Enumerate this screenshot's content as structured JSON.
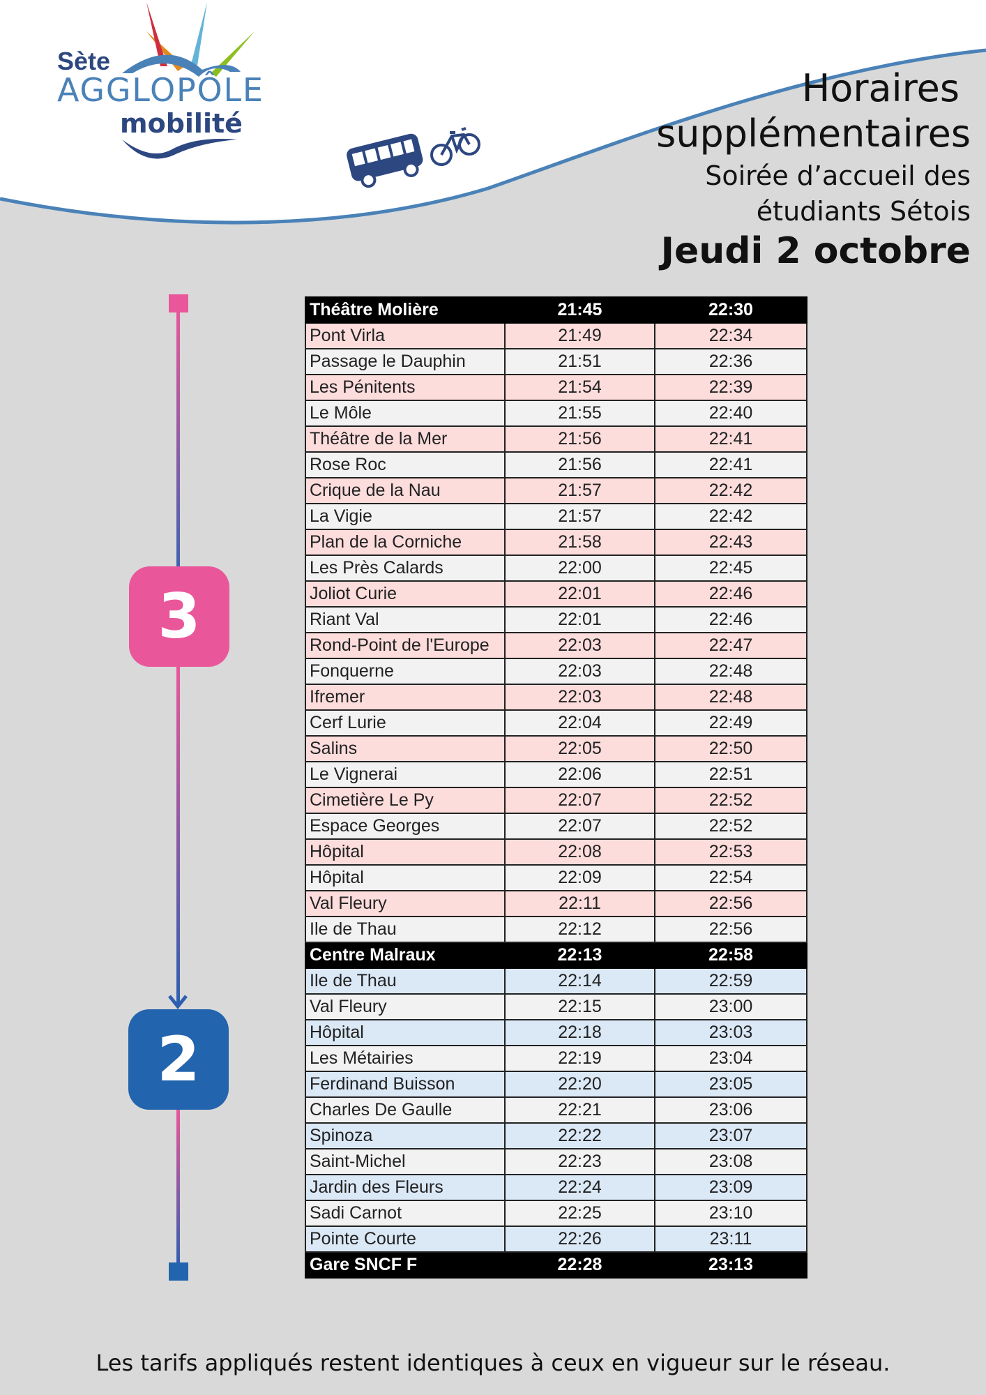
{
  "logo": {
    "text_line1": "Sète",
    "text_line2": "AGGLOPÔLE",
    "text_line3": "mobilité"
  },
  "header": {
    "line1": "Horaires",
    "line2": "supplémentaires",
    "line3": "Soirée d’accueil des",
    "line4": "étudiants Sétois",
    "line5": "Jeudi 2 octobre"
  },
  "line_badges": {
    "first": "3",
    "second": "2",
    "color_first": "#e9579a",
    "color_second": "#2264ad"
  },
  "icons": [
    "bus-icon",
    "bicycle-icon"
  ],
  "timetable": [
    {
      "stop": "Théâtre Molière",
      "t1": "21:45",
      "t2": "22:30",
      "style": "black"
    },
    {
      "stop": "Pont Virla",
      "t1": "21:49",
      "t2": "22:34",
      "style": "pink"
    },
    {
      "stop": "Passage le Dauphin",
      "t1": "21:51",
      "t2": "22:36",
      "style": "grey"
    },
    {
      "stop": "Les Pénitents",
      "t1": "21:54",
      "t2": "22:39",
      "style": "pink"
    },
    {
      "stop": "Le Môle",
      "t1": "21:55",
      "t2": "22:40",
      "style": "grey"
    },
    {
      "stop": "Théâtre de la Mer",
      "t1": "21:56",
      "t2": "22:41",
      "style": "pink"
    },
    {
      "stop": "Rose Roc",
      "t1": "21:56",
      "t2": "22:41",
      "style": "grey"
    },
    {
      "stop": "Crique de la Nau",
      "t1": "21:57",
      "t2": "22:42",
      "style": "pink"
    },
    {
      "stop": "La Vigie",
      "t1": "21:57",
      "t2": "22:42",
      "style": "grey"
    },
    {
      "stop": "Plan de la Corniche",
      "t1": "21:58",
      "t2": "22:43",
      "style": "pink"
    },
    {
      "stop": "Les Près Calards",
      "t1": "22:00",
      "t2": "22:45",
      "style": "grey"
    },
    {
      "stop": "Joliot Curie",
      "t1": "22:01",
      "t2": "22:46",
      "style": "pink"
    },
    {
      "stop": "Riant Val",
      "t1": "22:01",
      "t2": "22:46",
      "style": "grey"
    },
    {
      "stop": "Rond-Point de l'Europe",
      "t1": "22:03",
      "t2": "22:47",
      "style": "pink"
    },
    {
      "stop": "Fonquerne",
      "t1": "22:03",
      "t2": "22:48",
      "style": "grey"
    },
    {
      "stop": "Ifremer",
      "t1": "22:03",
      "t2": "22:48",
      "style": "pink"
    },
    {
      "stop": "Cerf Lurie",
      "t1": "22:04",
      "t2": "22:49",
      "style": "grey"
    },
    {
      "stop": "Salins",
      "t1": "22:05",
      "t2": "22:50",
      "style": "pink"
    },
    {
      "stop": "Le Vignerai",
      "t1": "22:06",
      "t2": "22:51",
      "style": "grey"
    },
    {
      "stop": "Cimetière Le Py",
      "t1": "22:07",
      "t2": "22:52",
      "style": "pink"
    },
    {
      "stop": "Espace Georges",
      "t1": "22:07",
      "t2": "22:52",
      "style": "grey"
    },
    {
      "stop": "Hôpital",
      "t1": "22:08",
      "t2": "22:53",
      "style": "pink"
    },
    {
      "stop": "Hôpital",
      "t1": "22:09",
      "t2": "22:54",
      "style": "grey"
    },
    {
      "stop": "Val Fleury",
      "t1": "22:11",
      "t2": "22:56",
      "style": "pink"
    },
    {
      "stop": "Ile de Thau",
      "t1": "22:12",
      "t2": "22:56",
      "style": "grey"
    },
    {
      "stop": "Centre Malraux",
      "t1": "22:13",
      "t2": "22:58",
      "style": "black"
    },
    {
      "stop": "Ile de Thau",
      "t1": "22:14",
      "t2": "22:59",
      "style": "blue"
    },
    {
      "stop": "Val Fleury",
      "t1": "22:15",
      "t2": "23:00",
      "style": "grey"
    },
    {
      "stop": "Hôpital",
      "t1": "22:18",
      "t2": "23:03",
      "style": "blue"
    },
    {
      "stop": "Les Métairies",
      "t1": "22:19",
      "t2": "23:04",
      "style": "grey"
    },
    {
      "stop": "Ferdinand Buisson",
      "t1": "22:20",
      "t2": "23:05",
      "style": "blue"
    },
    {
      "stop": "Charles De Gaulle",
      "t1": "22:21",
      "t2": "23:06",
      "style": "grey"
    },
    {
      "stop": "Spinoza",
      "t1": "22:22",
      "t2": "23:07",
      "style": "blue"
    },
    {
      "stop": "Saint-Michel",
      "t1": "22:23",
      "t2": "23:08",
      "style": "grey"
    },
    {
      "stop": "Jardin des Fleurs",
      "t1": "22:24",
      "t2": "23:09",
      "style": "blue"
    },
    {
      "stop": "Sadi Carnot",
      "t1": "22:25",
      "t2": "23:10",
      "style": "grey"
    },
    {
      "stop": "Pointe Courte",
      "t1": "22:26",
      "t2": "23:11",
      "style": "blue"
    },
    {
      "stop": "Gare SNCF F",
      "t1": "22:28",
      "t2": "23:13",
      "style": "black"
    }
  ],
  "footer": "Les tarifs appliqués restent identiques à ceux en vigueur sur le réseau."
}
